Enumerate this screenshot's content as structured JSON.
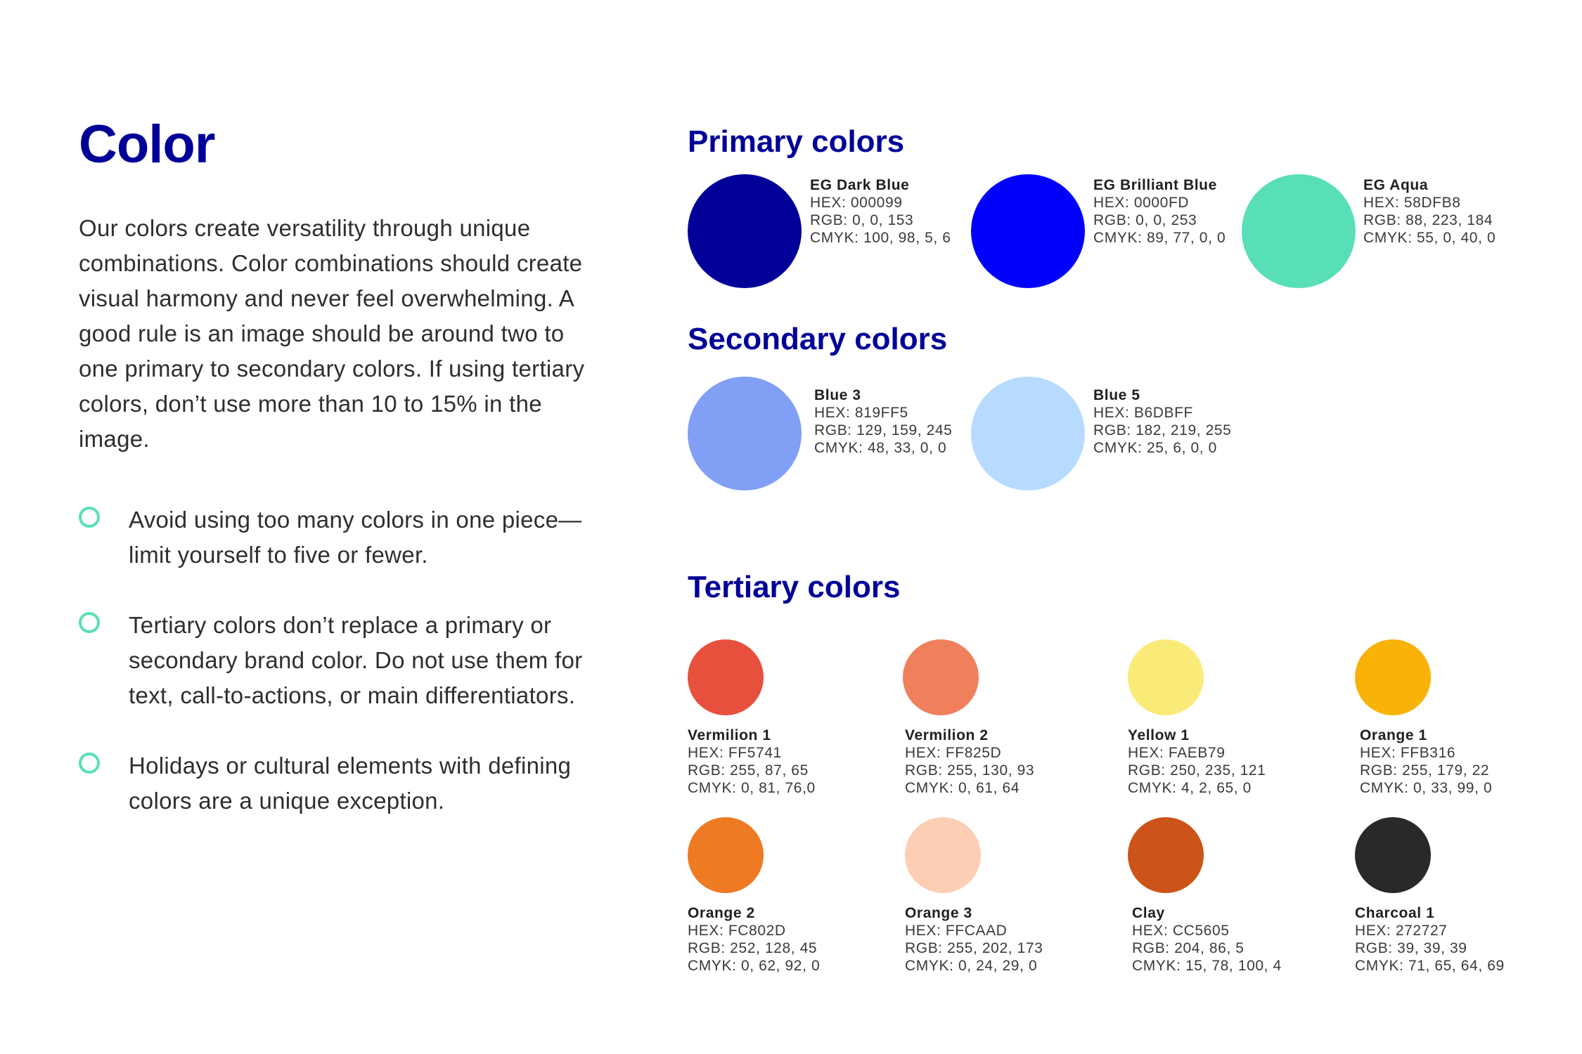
{
  "title": "Color",
  "intro": "Our colors create versatility through unique combinations. Color combinations should create visual harmony and never feel overwhelming. A good rule is an image should be around two to one primary to secondary colors. If using tertiary colors, don’t use more than 10 to 15% in the image.",
  "bullets": [
    "Avoid using too many colors in one piece—limit yourself to five or fewer.",
    "Tertiary colors don’t replace a primary or secondary brand color. Do not use them for text, call-to-actions, or main differentiators.",
    "Holidays or cultural elements with defining colors are a unique exception."
  ],
  "primary": {
    "heading": "Primary colors",
    "colors": [
      {
        "name": "EG Dark Blue",
        "hex": "HEX: 000099",
        "rgb": "RGB: 0, 0, 153",
        "cmyk": "CMYK: 100, 98, 5, 6",
        "color": "#000099"
      },
      {
        "name": "EG Brilliant Blue",
        "hex": "HEX: 0000FD",
        "rgb": "RGB: 0, 0, 253",
        "cmyk": "CMYK: 89, 77, 0, 0",
        "color": "#0000FD"
      },
      {
        "name": "EG Aqua",
        "hex": "HEX: 58DFB8",
        "rgb": "RGB: 88, 223, 184",
        "cmyk": "CMYK: 55, 0, 40, 0",
        "color": "#58DFB8"
      }
    ]
  },
  "secondary": {
    "heading": "Secondary colors",
    "colors": [
      {
        "name": "Blue 3",
        "hex": "HEX: 819FF5",
        "rgb": "RGB: 129, 159, 245",
        "cmyk": "CMYK: 48, 33, 0, 0",
        "color": "#819FF5"
      },
      {
        "name": "Blue 5",
        "hex": "HEX: B6DBFF",
        "rgb": "RGB: 182, 219, 255",
        "cmyk": "CMYK: 25, 6, 0, 0",
        "color": "#B6DBFF"
      }
    ]
  },
  "tertiary": {
    "heading": "Tertiary colors",
    "colors": [
      {
        "name": "Vermilion 1",
        "hex": "HEX: FF5741",
        "rgb": "RGB: 255, 87, 65",
        "cmyk": "CMYK: 0, 81, 76,0",
        "color": "#E8503E"
      },
      {
        "name": "Vermilion 2",
        "hex": "HEX: FF825D",
        "rgb": "RGB: 255, 130, 93",
        "cmyk": "CMYK: 0, 61, 64",
        "color": "#F0805C"
      },
      {
        "name": "Yellow 1",
        "hex": "HEX: FAEB79",
        "rgb": "RGB: 250, 235, 121",
        "cmyk": "CMYK: 4, 2, 65, 0",
        "color": "#FAEB79"
      },
      {
        "name": "Orange 1",
        "hex": "HEX: FFB316",
        "rgb": "RGB: 255, 179, 22",
        "cmyk": "CMYK: 0, 33, 99, 0",
        "color": "#F9B208"
      },
      {
        "name": "Orange 2",
        "hex": "HEX: FC802D",
        "rgb": "RGB: 252, 128, 45",
        "cmyk": "CMYK: 0, 62, 92, 0",
        "color": "#EE7A24"
      },
      {
        "name": "Orange 3",
        "hex": "HEX: FFCAAD",
        "rgb": "RGB: 255, 202, 173",
        "cmyk": "CMYK: 0, 24, 29, 0",
        "color": "#FCCFB4"
      },
      {
        "name": "Clay",
        "hex": "HEX: CC5605",
        "rgb": "RGB: 204, 86, 5",
        "cmyk": "CMYK: 15, 78, 100, 4",
        "color": "#CC5418"
      },
      {
        "name": "Charcoal 1",
        "hex": "HEX: 272727",
        "rgb": "RGB: 39, 39, 39",
        "cmyk": "CMYK: 71, 65, 64, 69",
        "color": "#2B2928"
      }
    ]
  }
}
